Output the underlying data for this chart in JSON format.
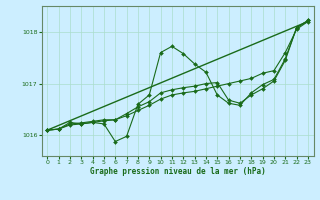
{
  "title": "Graphe pression niveau de la mer (hPa)",
  "bg_color": "#cceeff",
  "grid_color": "#aaddcc",
  "line_color": "#1a6b1a",
  "spine_color": "#668866",
  "xlim": [
    -0.5,
    23.5
  ],
  "ylim": [
    1015.6,
    1018.5
  ],
  "yticks": [
    1016,
    1017,
    1018
  ],
  "xticks": [
    0,
    1,
    2,
    3,
    4,
    5,
    6,
    7,
    8,
    9,
    10,
    11,
    12,
    13,
    14,
    15,
    16,
    17,
    18,
    19,
    20,
    21,
    22,
    23
  ],
  "series": [
    {
      "x": [
        0,
        23
      ],
      "y": [
        1016.1,
        1018.2
      ],
      "marker": null,
      "markersize": 0,
      "linewidth": 1.0
    },
    {
      "x": [
        0,
        1,
        2,
        3,
        4,
        5,
        6,
        7,
        8,
        9,
        10,
        11,
        12,
        13,
        14,
        15,
        16,
        17,
        18,
        19,
        20,
        21,
        22,
        23
      ],
      "y": [
        1016.1,
        1016.12,
        1016.2,
        1016.22,
        1016.25,
        1016.28,
        1016.3,
        1016.38,
        1016.48,
        1016.58,
        1016.7,
        1016.78,
        1016.82,
        1016.85,
        1016.9,
        1016.95,
        1017.0,
        1017.05,
        1017.1,
        1017.2,
        1017.25,
        1017.6,
        1018.05,
        1018.2
      ],
      "marker": "D",
      "markersize": 2.0,
      "linewidth": 0.8
    },
    {
      "x": [
        0,
        1,
        2,
        3,
        4,
        5,
        6,
        7,
        8,
        9,
        10,
        11,
        12,
        13,
        14,
        15,
        16,
        17,
        18,
        19,
        20,
        21,
        22,
        23
      ],
      "y": [
        1016.1,
        1016.12,
        1016.22,
        1016.24,
        1016.27,
        1016.3,
        1016.3,
        1016.42,
        1016.55,
        1016.65,
        1016.82,
        1016.88,
        1016.92,
        1016.95,
        1017.0,
        1017.02,
        1016.68,
        1016.62,
        1016.78,
        1016.9,
        1017.05,
        1017.45,
        1018.08,
        1018.22
      ],
      "marker": "D",
      "markersize": 2.0,
      "linewidth": 0.8
    },
    {
      "x": [
        0,
        1,
        2,
        3,
        4,
        5,
        6,
        7,
        8,
        9,
        10,
        11,
        12,
        13,
        14,
        15,
        16,
        17,
        18,
        19,
        20,
        21,
        22,
        23
      ],
      "y": [
        1016.1,
        1016.12,
        1016.25,
        1016.22,
        1016.25,
        1016.22,
        1015.88,
        1015.98,
        1016.6,
        1016.78,
        1017.6,
        1017.72,
        1017.58,
        1017.38,
        1017.22,
        1016.78,
        1016.62,
        1016.58,
        1016.82,
        1016.98,
        1017.08,
        1017.48,
        1018.08,
        1018.22
      ],
      "marker": "D",
      "markersize": 2.0,
      "linewidth": 0.8
    }
  ]
}
